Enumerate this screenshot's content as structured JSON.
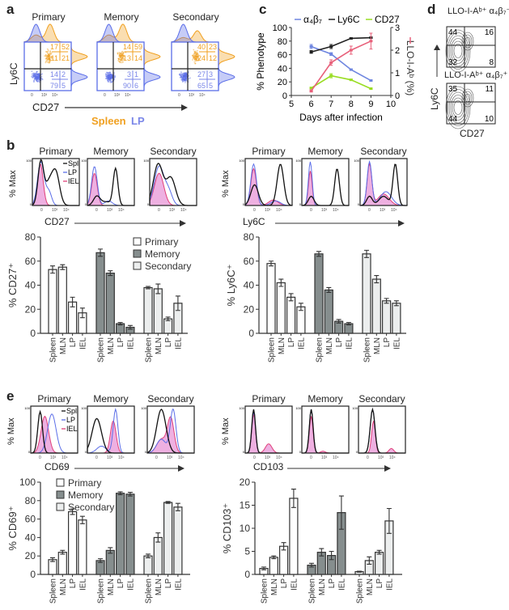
{
  "panel_labels": {
    "a": "a",
    "b": "b",
    "c": "c",
    "d": "d",
    "e": "e"
  },
  "conditions": [
    "Primary",
    "Memory",
    "Secondary"
  ],
  "colors": {
    "spleen": "#f0a020",
    "lp": "#5b6ee8",
    "iel": "#e0407a",
    "spl_line": "#111111",
    "primary": "#ffffff",
    "memory": "#868e8e",
    "secondary": "#eceeee",
    "alpha4b7": "#6f86e0",
    "ly6c": "#222222",
    "cd27": "#99dd22",
    "llo": "#e8607a"
  },
  "panel_a": {
    "ylabel": "Ly6C",
    "xlabel": "CD27",
    "legend_spleen": "Spleen",
    "legend_lp": "LP",
    "ticks": [
      "0",
      "10³",
      "10⁴"
    ],
    "quadrants": [
      {
        "spleen": [
          "17",
          "52",
          "11",
          "21"
        ],
        "lp": [
          "14",
          "2",
          "79",
          "5"
        ]
      },
      {
        "spleen": [
          "14",
          "59",
          "13",
          "14"
        ],
        "lp": [
          "3",
          "1",
          "90",
          "6"
        ]
      },
      {
        "spleen": [
          "40",
          "23",
          "24",
          "12"
        ],
        "lp": [
          "27",
          "3",
          "65",
          "5"
        ]
      }
    ]
  },
  "hist": {
    "ylabel": "% Max",
    "ymax": "100",
    "ymin": "0",
    "ticks": [
      "0",
      "10³",
      "10⁴"
    ],
    "legend": [
      "Spl",
      "LP",
      "IEL"
    ]
  },
  "panel_b": {
    "hist_xlabel_left": "CD27",
    "hist_xlabel_right": "Ly6C"
  },
  "panel_e": {
    "hist_xlabel_left": "CD69",
    "hist_xlabel_right": "CD103"
  },
  "panel_d": {
    "top_title": "LLO-I-Aᵇ⁺ α₄β₇⁻",
    "bottom_title": "LLO-I-Aᵇ⁺ α₄β₇⁺",
    "ylabel": "Ly6C",
    "xlabel": "CD27",
    "top_quadrants": [
      "44",
      "16",
      "32",
      "8"
    ],
    "bottom_quadrants": [
      "35",
      "11",
      "44",
      "10"
    ]
  },
  "chart_data": [
    {
      "id": "c",
      "type": "line",
      "xlabel": "Days after infection",
      "ylabel": "% Phenotype",
      "y2label": "LLO-I-Aᵇ (%)",
      "xlim": [
        5,
        10
      ],
      "ylim": [
        0,
        100
      ],
      "y2lim": [
        0,
        3
      ],
      "xticks": [
        "5",
        "6",
        "7",
        "8",
        "9",
        "10"
      ],
      "yticks": [
        "0",
        "20",
        "40",
        "60",
        "80",
        "100"
      ],
      "y2ticks": [
        "0",
        "1",
        "2",
        "3"
      ],
      "x": [
        6,
        7,
        8,
        9
      ],
      "series": [
        {
          "name": "α₄β₇",
          "axis": "left",
          "values": [
            72,
            61,
            38,
            22
          ],
          "err": [
            3,
            2,
            1,
            1
          ]
        },
        {
          "name": "Ly6C",
          "axis": "left",
          "values": [
            64,
            72,
            84,
            85
          ],
          "err": [
            2,
            3,
            1,
            1
          ]
        },
        {
          "name": "CD27",
          "axis": "left",
          "values": [
            11,
            29,
            23,
            10
          ],
          "err": [
            1,
            3,
            1,
            1
          ]
        },
        {
          "name": "LLO-I-Aᵇ",
          "axis": "right",
          "values": [
            0.2,
            1.45,
            2.0,
            2.4
          ],
          "err": [
            0.05,
            0.12,
            0.18,
            0.35
          ]
        }
      ]
    },
    {
      "id": "b-left",
      "type": "bar",
      "ylabel": "% CD27⁺",
      "ylim": [
        0,
        80
      ],
      "yticks": [
        "0",
        "20",
        "40",
        "60",
        "80"
      ],
      "categories": [
        "Spleen",
        "MLN",
        "LP",
        "IEL"
      ],
      "legend": [
        "Primary",
        "Memory",
        "Secondary"
      ],
      "legend_position": "top-right",
      "series": [
        {
          "name": "Primary",
          "values": [
            53,
            55,
            26,
            17
          ],
          "err": [
            3,
            2,
            4,
            4
          ]
        },
        {
          "name": "Memory",
          "values": [
            67,
            50,
            8,
            5
          ],
          "err": [
            3,
            2,
            1,
            1.5
          ]
        },
        {
          "name": "Secondary",
          "values": [
            38,
            37,
            12,
            25
          ],
          "err": [
            1,
            4,
            1.5,
            6
          ]
        }
      ]
    },
    {
      "id": "b-right",
      "type": "bar",
      "ylabel": "% Ly6C⁺",
      "ylim": [
        0,
        80
      ],
      "yticks": [
        "0",
        "20",
        "40",
        "60",
        "80"
      ],
      "categories": [
        "Spleen",
        "MLN",
        "LP",
        "IEL"
      ],
      "series": [
        {
          "name": "Primary",
          "values": [
            58,
            42,
            30,
            22
          ],
          "err": [
            2,
            3,
            3,
            3
          ]
        },
        {
          "name": "Memory",
          "values": [
            66,
            36,
            10,
            8
          ],
          "err": [
            2,
            2,
            1.5,
            1
          ]
        },
        {
          "name": "Secondary",
          "values": [
            66,
            45,
            27,
            25
          ],
          "err": [
            3,
            3,
            2,
            2
          ]
        }
      ]
    },
    {
      "id": "e-left",
      "type": "bar",
      "ylabel": "% CD69⁺",
      "ylim": [
        0,
        100
      ],
      "yticks": [
        "0",
        "20",
        "40",
        "60",
        "80",
        "100"
      ],
      "categories": [
        "Spleen",
        "MLN",
        "LP",
        "IEL"
      ],
      "legend": [
        "Primary",
        "Memory",
        "Secondary"
      ],
      "legend_position": "top-left",
      "series": [
        {
          "name": "Primary",
          "values": [
            16,
            24,
            68,
            59
          ],
          "err": [
            2,
            2,
            3,
            4
          ]
        },
        {
          "name": "Memory",
          "values": [
            15,
            26,
            88,
            87
          ],
          "err": [
            2,
            3,
            1.5,
            2
          ]
        },
        {
          "name": "Secondary",
          "values": [
            20,
            40,
            78,
            73
          ],
          "err": [
            2,
            5,
            1,
            4
          ]
        }
      ]
    },
    {
      "id": "e-right",
      "type": "bar",
      "ylabel": "% CD103⁺",
      "ylim": [
        0,
        20
      ],
      "yticks": [
        "0",
        "5",
        "10",
        "15",
        "20"
      ],
      "categories": [
        "Spleen",
        "MLN",
        "LP",
        "IEL"
      ],
      "series": [
        {
          "name": "Primary",
          "values": [
            1.3,
            3.7,
            6.1,
            16.5
          ],
          "err": [
            0.3,
            0.3,
            0.8,
            2
          ]
        },
        {
          "name": "Memory",
          "values": [
            2.0,
            4.8,
            4.1,
            13.4
          ],
          "err": [
            0.4,
            0.8,
            0.9,
            3.6
          ]
        },
        {
          "name": "Secondary",
          "values": [
            0.6,
            3.0,
            4.8,
            11.6
          ],
          "err": [
            0.1,
            0.8,
            0.4,
            2.7
          ]
        }
      ]
    }
  ]
}
